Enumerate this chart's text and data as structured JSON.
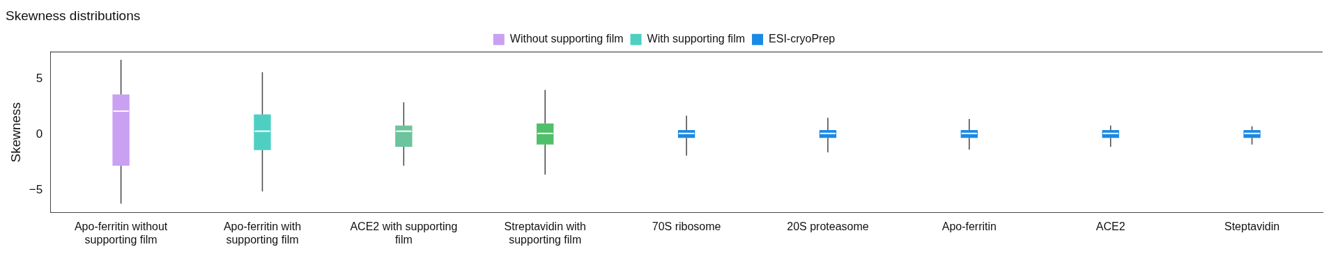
{
  "chart_data": {
    "type": "box",
    "title": "Skewness distributions",
    "ylabel": "Skewness",
    "categories": [
      "Apo-ferritin without supporting film",
      "Apo-ferritin with supporting film",
      "ACE2 with supporting film",
      "Streptavidin with supporting film",
      "70S ribosome",
      "20S proteasome",
      "Apo-ferritin",
      "ACE2",
      "Steptavidin"
    ],
    "ylim": [
      -7,
      7.4
    ],
    "yticks": [
      -5,
      0,
      5
    ],
    "grid": false,
    "legend": "top",
    "series": [
      {
        "name": "Without supporting film",
        "color": "#c9a0f2",
        "colors": [
          "#c9a0f2",
          null,
          null,
          null,
          null,
          null,
          null,
          null,
          null
        ],
        "boxes": [
          {
            "low": -6.2,
            "q1": -2.8,
            "median": 2.1,
            "q3": 3.6,
            "high": 6.7
          },
          null,
          null,
          null,
          null,
          null,
          null,
          null,
          null
        ]
      },
      {
        "name": "With supporting film",
        "color": "#4dd0c2",
        "colors": [
          null,
          "#4dd0c2",
          "#6cc49c",
          "#4fbf6a",
          null,
          null,
          null,
          null,
          null
        ],
        "boxes": [
          null,
          {
            "low": -5.1,
            "q1": -1.4,
            "median": 0.3,
            "q3": 1.8,
            "high": 5.6
          },
          {
            "low": -2.8,
            "q1": -1.1,
            "median": 0.3,
            "q3": 0.8,
            "high": 2.9
          },
          {
            "low": -3.6,
            "q1": -0.9,
            "median": 0.1,
            "q3": 1.0,
            "high": 4.0
          },
          null,
          null,
          null,
          null,
          null
        ]
      },
      {
        "name": "ESI-cryoPrep",
        "color": "#1a8ae5",
        "colors": [
          null,
          null,
          null,
          null,
          "#1a8ae5",
          "#1a8ae5",
          "#1a8ae5",
          "#1a8ae5",
          "#1a8ae5"
        ],
        "boxes": [
          null,
          null,
          null,
          null,
          {
            "low": -1.9,
            "q1": -0.3,
            "median": 0.1,
            "q3": 0.4,
            "high": 1.7
          },
          {
            "low": -1.6,
            "q1": -0.3,
            "median": 0.1,
            "q3": 0.4,
            "high": 1.5
          },
          {
            "low": -1.35,
            "q1": -0.3,
            "median": 0.1,
            "q3": 0.4,
            "high": 1.4
          },
          {
            "low": -1.1,
            "q1": -0.3,
            "median": 0.1,
            "q3": 0.4,
            "high": 0.8
          },
          {
            "low": -0.9,
            "q1": -0.3,
            "median": 0.1,
            "q3": 0.4,
            "high": 0.75
          }
        ]
      }
    ]
  }
}
